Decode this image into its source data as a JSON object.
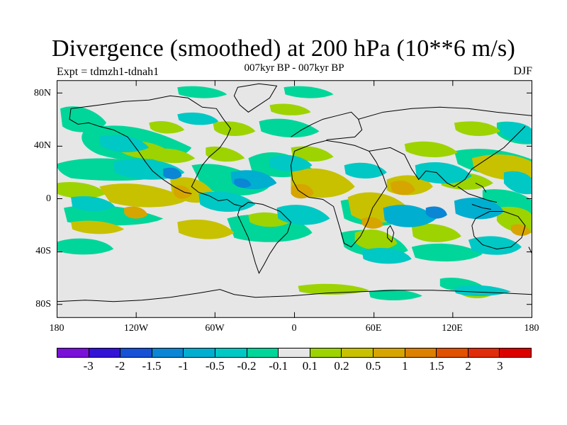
{
  "map": {
    "title": "Divergence (smoothed) at 200 hPa (10**6 m/s)",
    "experiment": "Expt = tdmzh1-tdnah1",
    "period": "007kyr BP - 007kyr BP",
    "season": "DJF",
    "lat_labels": [
      "80N",
      "40N",
      "0",
      "40S",
      "80S"
    ],
    "lon_labels": [
      "180",
      "120W",
      "60W",
      "0",
      "60E",
      "120E",
      "180"
    ],
    "background_color": "#e6e6e6",
    "coast_color": "#000000"
  },
  "legend": {
    "colors": [
      "#7a11d8",
      "#3313d6",
      "#1651d6",
      "#0a86d4",
      "#00aed0",
      "#00c8c4",
      "#00d699",
      "#e6e6e6",
      "#9dd300",
      "#c7c100",
      "#d6a500",
      "#dc8000",
      "#e05100",
      "#e02c0a",
      "#dc0000"
    ],
    "labels": [
      "-3",
      "-2",
      "-1.5",
      "-1",
      "-0.5",
      "-0.2",
      "-0.1",
      "0.1",
      "0.2",
      "0.5",
      "1",
      "1.5",
      "2",
      "3"
    ]
  }
}
